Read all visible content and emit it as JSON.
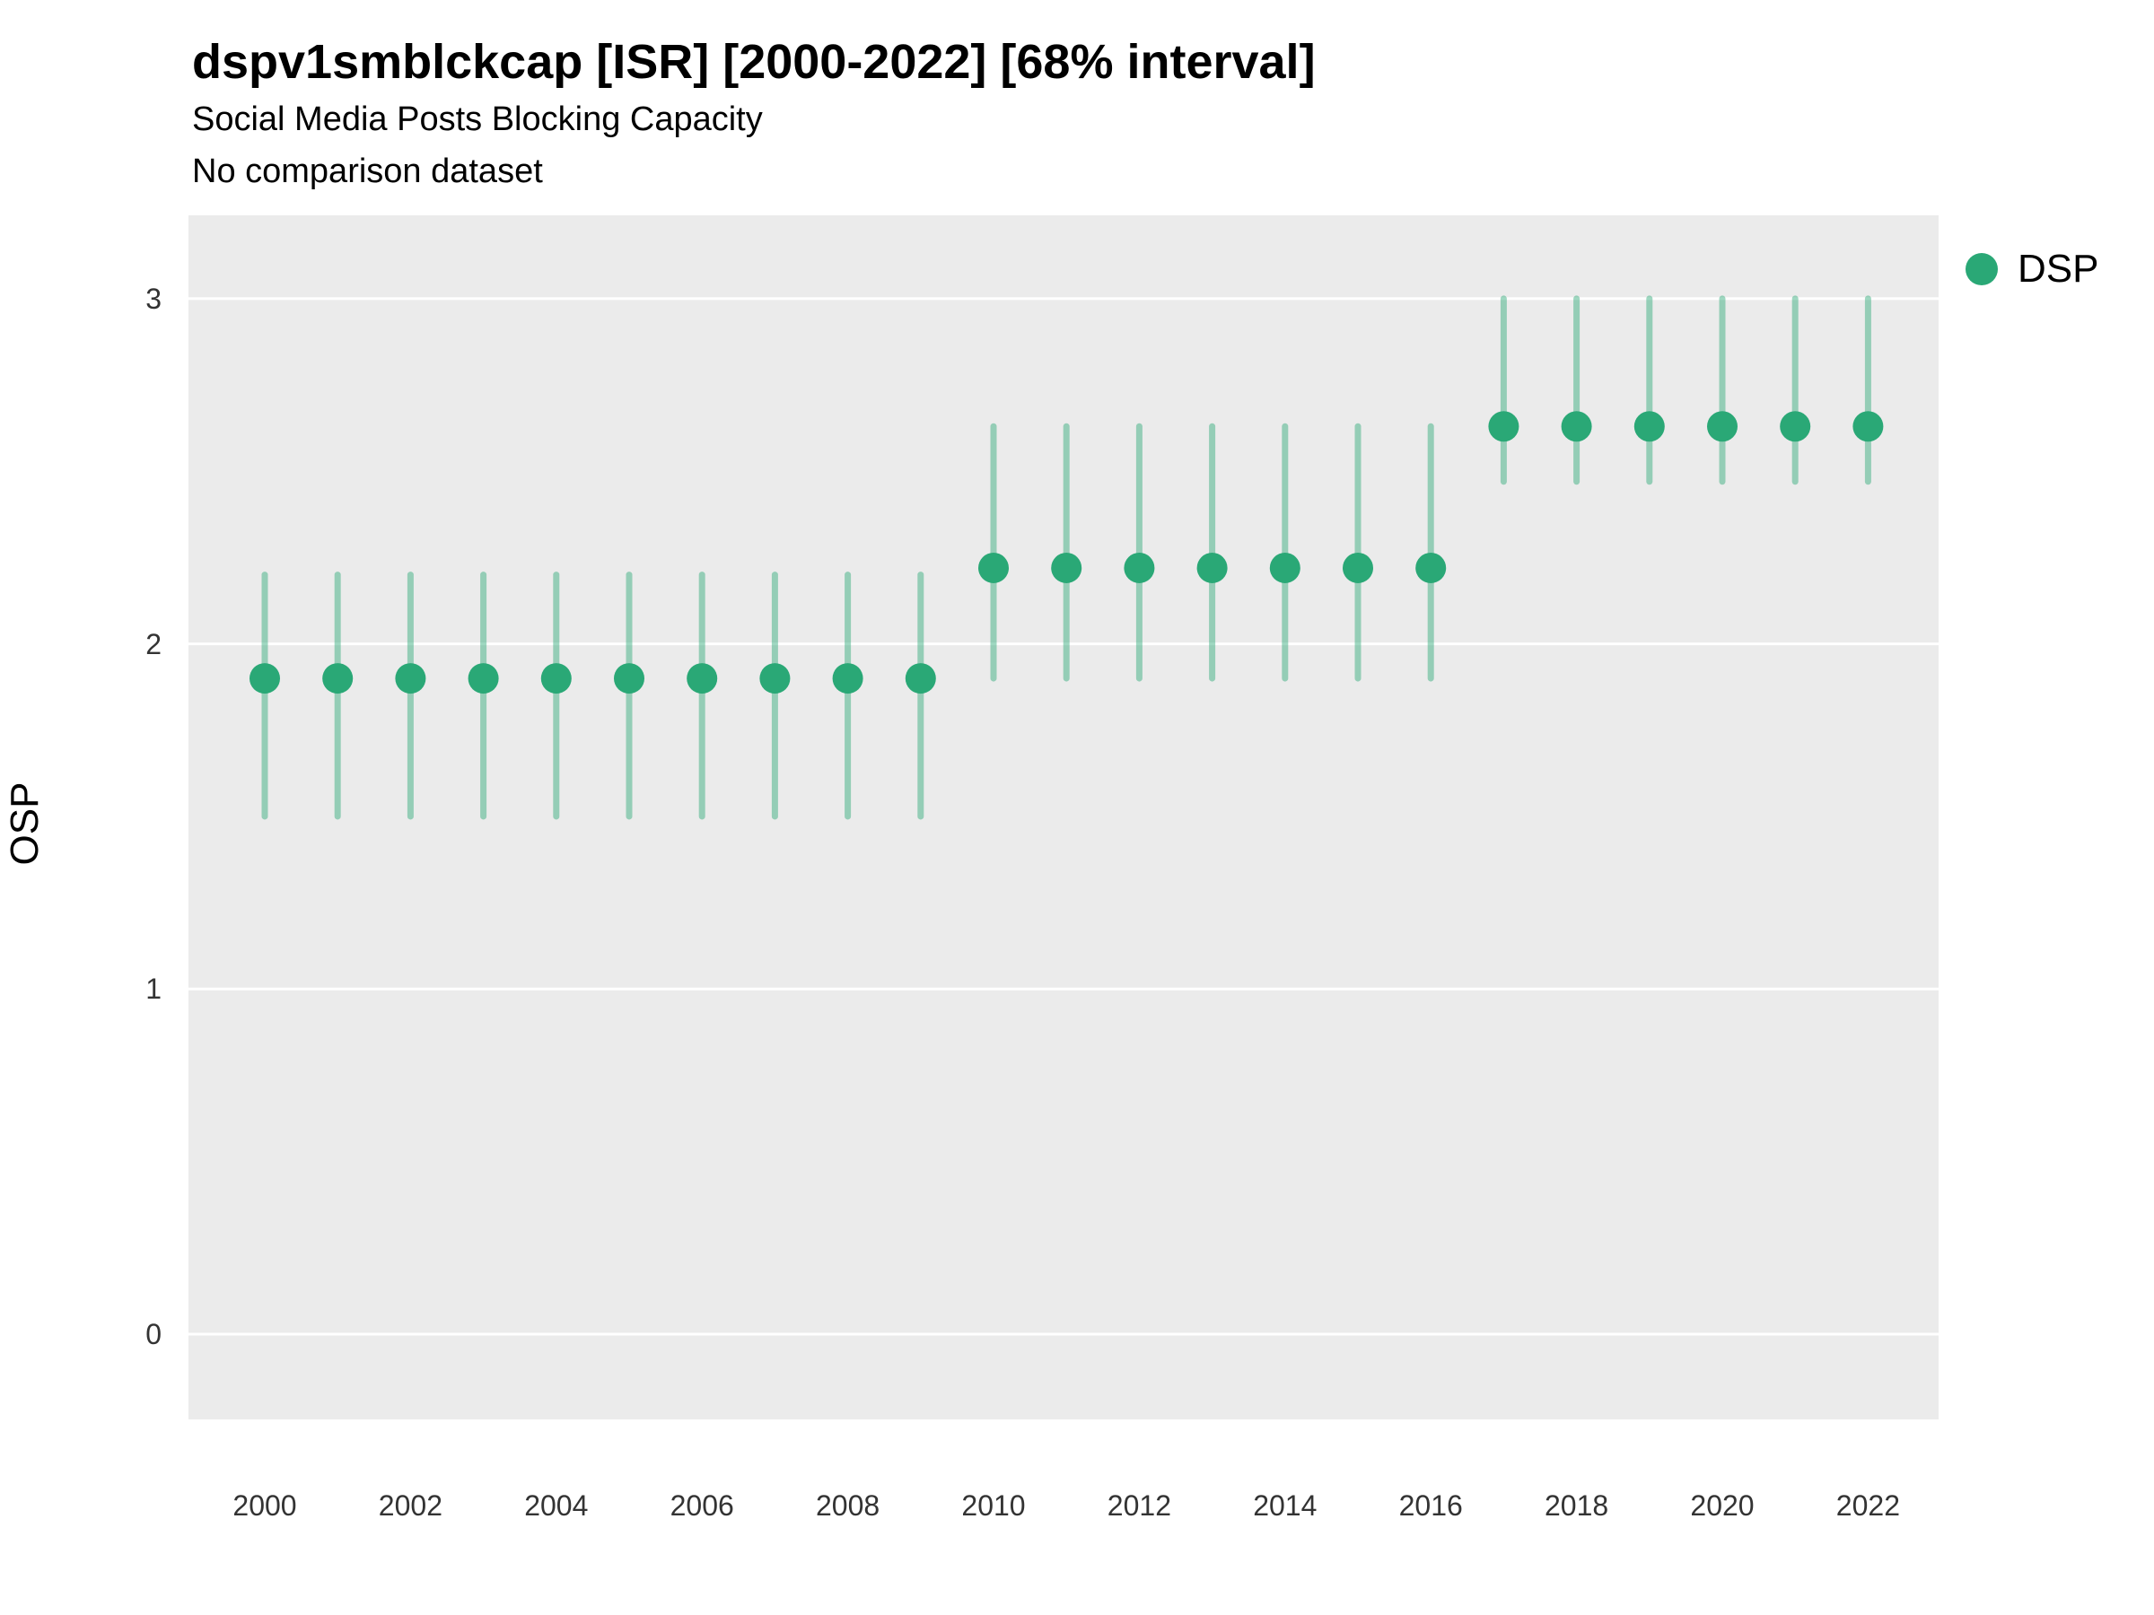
{
  "title": "dspv1smblckcap [ISR] [2000-2022] [68% interval]",
  "subtitle": "Social Media Posts Blocking Capacity",
  "subtitle2": "No comparison dataset",
  "legend": {
    "label": "DSP"
  },
  "colors": {
    "point": "#2aa876",
    "interval": "#2aa876",
    "panel_bg": "#ebebeb",
    "gridline": "#ffffff"
  },
  "axes": {
    "y_label": "OSP",
    "y_ticks": [
      0,
      1,
      2,
      3
    ],
    "x_ticks": [
      2000,
      2002,
      2004,
      2006,
      2008,
      2010,
      2012,
      2014,
      2016,
      2018,
      2020,
      2022
    ]
  },
  "chart_data": {
    "type": "scatter",
    "subtype": "pointrange",
    "title": "dspv1smblckcap [ISR] [2000-2022] [68% interval]",
    "xlabel": "",
    "ylabel": "OSP",
    "ylim": [
      -0.25,
      3.25
    ],
    "xlim": [
      1999,
      2023
    ],
    "grid": "major-horizontal-white-on-gray",
    "legend_position": "right-top",
    "interval_level": "68%",
    "series": [
      {
        "name": "DSP",
        "x": [
          2000,
          2001,
          2002,
          2003,
          2004,
          2005,
          2006,
          2007,
          2008,
          2009,
          2010,
          2011,
          2012,
          2013,
          2014,
          2015,
          2016,
          2017,
          2018,
          2019,
          2020,
          2021,
          2022
        ],
        "y": [
          1.9,
          1.9,
          1.9,
          1.9,
          1.9,
          1.9,
          1.9,
          1.9,
          1.9,
          1.9,
          2.22,
          2.22,
          2.22,
          2.22,
          2.22,
          2.22,
          2.22,
          2.63,
          2.63,
          2.63,
          2.63,
          2.63,
          2.63
        ],
        "lower": [
          1.5,
          1.5,
          1.5,
          1.5,
          1.5,
          1.5,
          1.5,
          1.5,
          1.5,
          1.5,
          1.9,
          1.9,
          1.9,
          1.9,
          1.9,
          1.9,
          1.9,
          2.47,
          2.47,
          2.47,
          2.47,
          2.47,
          2.47
        ],
        "upper": [
          2.2,
          2.2,
          2.2,
          2.2,
          2.2,
          2.2,
          2.2,
          2.2,
          2.2,
          2.2,
          2.63,
          2.63,
          2.63,
          2.63,
          2.63,
          2.63,
          2.63,
          3.0,
          3.0,
          3.0,
          3.0,
          3.0,
          3.0
        ]
      }
    ]
  }
}
